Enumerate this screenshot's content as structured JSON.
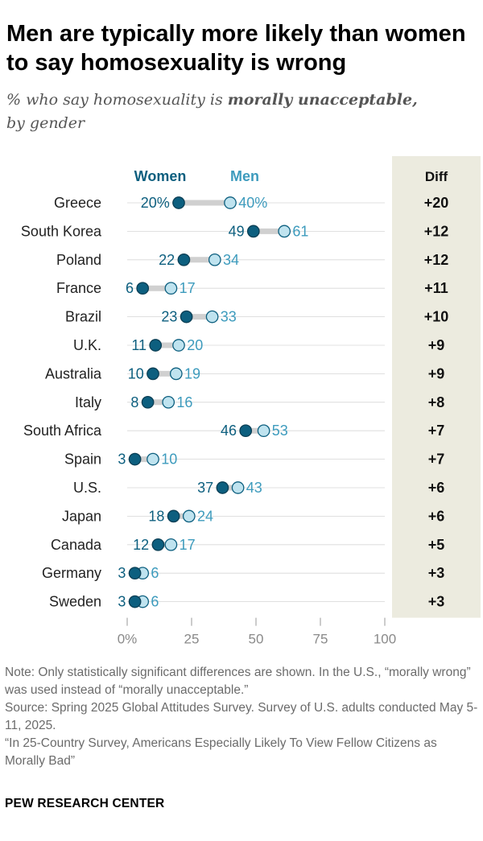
{
  "title": "Men are typically more likely than women to say homosexuality is wrong",
  "subtitle": {
    "prefix": "% who say homosexuality is ",
    "emphasis": "morally unacceptable,",
    "suffix": "by gender"
  },
  "chart_data": {
    "type": "dot-plot",
    "legend": {
      "women": "Women",
      "men": "Men"
    },
    "diff_header": "Diff",
    "x_ticks": [
      0,
      25,
      50,
      75,
      100
    ],
    "x_tick_labels": [
      "0%",
      "25",
      "50",
      "75",
      "100"
    ],
    "xlim": [
      0,
      100
    ],
    "rows": [
      {
        "country": "Greece",
        "women": 20,
        "men": 40,
        "women_label": "20%",
        "men_label": "40%",
        "diff": "+20"
      },
      {
        "country": "South Korea",
        "women": 49,
        "men": 61,
        "women_label": "49",
        "men_label": "61",
        "diff": "+12"
      },
      {
        "country": "Poland",
        "women": 22,
        "men": 34,
        "women_label": "22",
        "men_label": "34",
        "diff": "+12"
      },
      {
        "country": "France",
        "women": 6,
        "men": 17,
        "women_label": "6",
        "men_label": "17",
        "diff": "+11"
      },
      {
        "country": "Brazil",
        "women": 23,
        "men": 33,
        "women_label": "23",
        "men_label": "33",
        "diff": "+10"
      },
      {
        "country": "U.K.",
        "women": 11,
        "men": 20,
        "women_label": "11",
        "men_label": "20",
        "diff": "+9"
      },
      {
        "country": "Australia",
        "women": 10,
        "men": 19,
        "women_label": "10",
        "men_label": "19",
        "diff": "+9"
      },
      {
        "country": "Italy",
        "women": 8,
        "men": 16,
        "women_label": "8",
        "men_label": "16",
        "diff": "+8"
      },
      {
        "country": "South Africa",
        "women": 46,
        "men": 53,
        "women_label": "46",
        "men_label": "53",
        "diff": "+7"
      },
      {
        "country": "Spain",
        "women": 3,
        "men": 10,
        "women_label": "3",
        "men_label": "10",
        "diff": "+7"
      },
      {
        "country": "U.S.",
        "women": 37,
        "men": 43,
        "women_label": "37",
        "men_label": "43",
        "diff": "+6"
      },
      {
        "country": "Japan",
        "women": 18,
        "men": 24,
        "women_label": "18",
        "men_label": "24",
        "diff": "+6"
      },
      {
        "country": "Canada",
        "women": 12,
        "men": 17,
        "women_label": "12",
        "men_label": "17",
        "diff": "+5"
      },
      {
        "country": "Germany",
        "women": 3,
        "men": 6,
        "women_label": "3",
        "men_label": "6",
        "diff": "+3"
      },
      {
        "country": "Sweden",
        "women": 3,
        "men": 6,
        "women_label": "3",
        "men_label": "6",
        "diff": "+3"
      }
    ],
    "colors": {
      "women": "#0d5f7f",
      "men_fill": "#bfe3ef",
      "men_text": "#3d9bbd",
      "connector": "#d0d0d0",
      "grid": "#d6d6d6",
      "diff_bg": "#ecebdf"
    }
  },
  "notes": {
    "note": "Note: Only statistically significant differences are shown. In the U.S., “morally wrong” was used instead of “morally unacceptable.”",
    "source": "Source: Spring 2025 Global Attitudes Survey. Survey of U.S. adults conducted May 5-11, 2025.",
    "report": "“In 25-Country Survey, Americans Especially Likely To View Fellow Citizens as Morally Bad”"
  },
  "brand": "PEW RESEARCH CENTER"
}
